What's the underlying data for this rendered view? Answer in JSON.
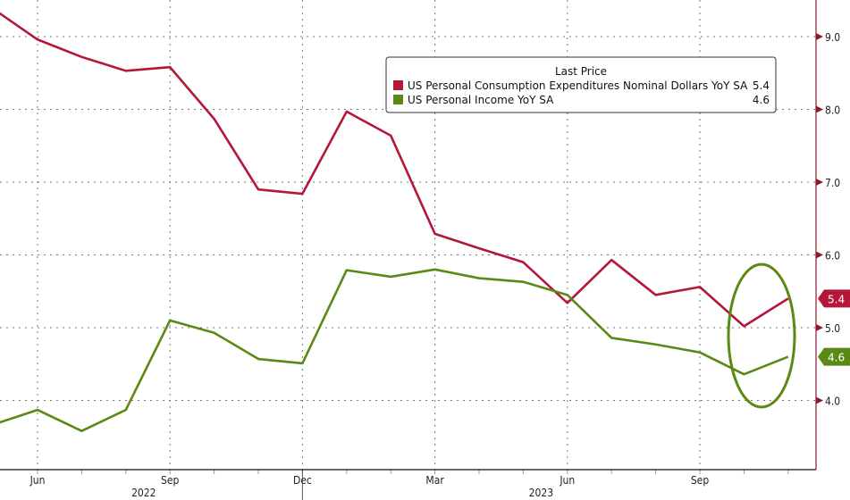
{
  "chart_data": {
    "type": "line",
    "title": "",
    "xlabel": "",
    "ylabel": "",
    "x": [
      "2022-05",
      "2022-06",
      "2022-07",
      "2022-08",
      "2022-09",
      "2022-10",
      "2022-11",
      "2022-12",
      "2023-01",
      "2023-02",
      "2023-03",
      "2023-04",
      "2023-05",
      "2023-06",
      "2023-07",
      "2023-08",
      "2023-09",
      "2023-10",
      "2023-11"
    ],
    "x_tick_labels": [
      {
        "month": "2022-06",
        "label": "Jun"
      },
      {
        "month": "2022-09",
        "label": "Sep"
      },
      {
        "month": "2022-12",
        "label": "Dec"
      },
      {
        "month": "2023-03",
        "label": "Mar"
      },
      {
        "month": "2023-06",
        "label": "Jun"
      },
      {
        "month": "2023-09",
        "label": "Sep"
      }
    ],
    "year_labels": [
      {
        "month": "2022-08",
        "label": "2022"
      },
      {
        "month": "2023-05",
        "label": "2023"
      }
    ],
    "ylim": [
      3.1,
      9.5
    ],
    "y_ticks": [
      "4.0",
      "5.0",
      "6.0",
      "7.0",
      "8.0",
      "9.0"
    ],
    "y_axis_side": "right",
    "grid": true,
    "legend_title": "Last Price",
    "legend_placement": "top-right",
    "series": [
      {
        "name": "US Personal Consumption Expenditures Nominal Dollars YoY SA",
        "last": "5.4",
        "color": "#b5173a",
        "values": [
          9.38,
          8.96,
          8.72,
          8.53,
          8.58,
          7.87,
          6.9,
          6.84,
          7.97,
          7.64,
          6.29,
          6.09,
          5.9,
          5.34,
          5.93,
          5.45,
          5.56,
          5.02,
          5.4
        ]
      },
      {
        "name": "US Personal Income YoY SA",
        "last": "4.6",
        "color": "#5a8a14",
        "values": [
          3.67,
          3.87,
          3.58,
          3.87,
          5.1,
          4.93,
          4.57,
          4.51,
          5.79,
          5.7,
          5.8,
          5.68,
          5.63,
          5.45,
          4.86,
          4.77,
          4.66,
          4.36,
          4.6
        ]
      }
    ],
    "annotation": "ellipse highlighting last two months"
  }
}
